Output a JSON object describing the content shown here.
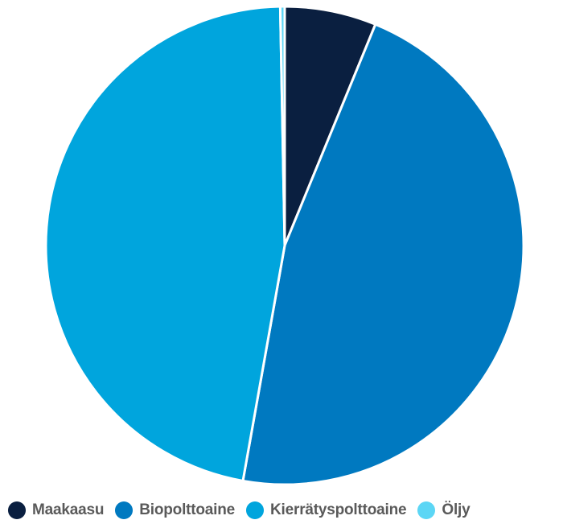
{
  "chart_data": {
    "type": "pie",
    "title": "",
    "series": [
      {
        "name": "Maakaasu",
        "value": 6.2,
        "color": "#0a1f40"
      },
      {
        "name": "Biopolttoaine",
        "value": 46.6,
        "color": "#0079c0"
      },
      {
        "name": "Kierrätyspolttoaine",
        "value": 46.9,
        "color": "#00a5dd"
      },
      {
        "name": "Öljy",
        "value": 0.3,
        "color": "#5cd6f5"
      }
    ],
    "legend_position": "bottom-left",
    "slice_border_color": "#ffffff"
  }
}
